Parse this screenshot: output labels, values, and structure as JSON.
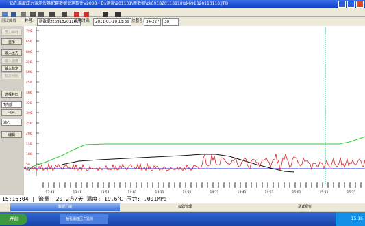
{
  "window": {
    "title": "钻孔温度压力监测仪器配套数据处理软件V2008 - E:\\测温\\201101\\新数据\\zk691820110110\\zk691820110110.JTQ"
  },
  "info": {
    "tab": "测试曲线",
    "well_label": "井号:",
    "well": "新数据zk6918201101",
    "power_label": "加电时间:",
    "power_time": "2011-01-10 13:36",
    "device_label": "仪器号:",
    "device": "34-227",
    "interval": "30"
  },
  "sidebar": {
    "items": [
      "压力曲线",
      "显示",
      "输入压力",
      "输入温度",
      "输入标定",
      "标定对比",
      "选择井口",
      "T内部",
      "卡片",
      "满心",
      "编辑"
    ]
  },
  "chart": {
    "y_labels": [
      700,
      650,
      600,
      550,
      500,
      450,
      400,
      350,
      300,
      250,
      200,
      150,
      100,
      50
    ],
    "x_labels": [
      "13:43",
      "13:48",
      "13:53",
      "14:01",
      "14:11",
      "14:21",
      "14:31",
      "14:41",
      "14:51",
      "15:01",
      "15:11",
      "15:21"
    ]
  },
  "status": {
    "time": "15:16:04",
    "text": "流量: 20.2方/天 温度: 19.6℃ 压力: .001MPa"
  },
  "tabs": [
    "数据汇编",
    "仪器管理",
    "测试报告"
  ],
  "taskbar": {
    "start": "开始",
    "task": "钻孔温度压力监测",
    "clock": "15:16"
  }
}
